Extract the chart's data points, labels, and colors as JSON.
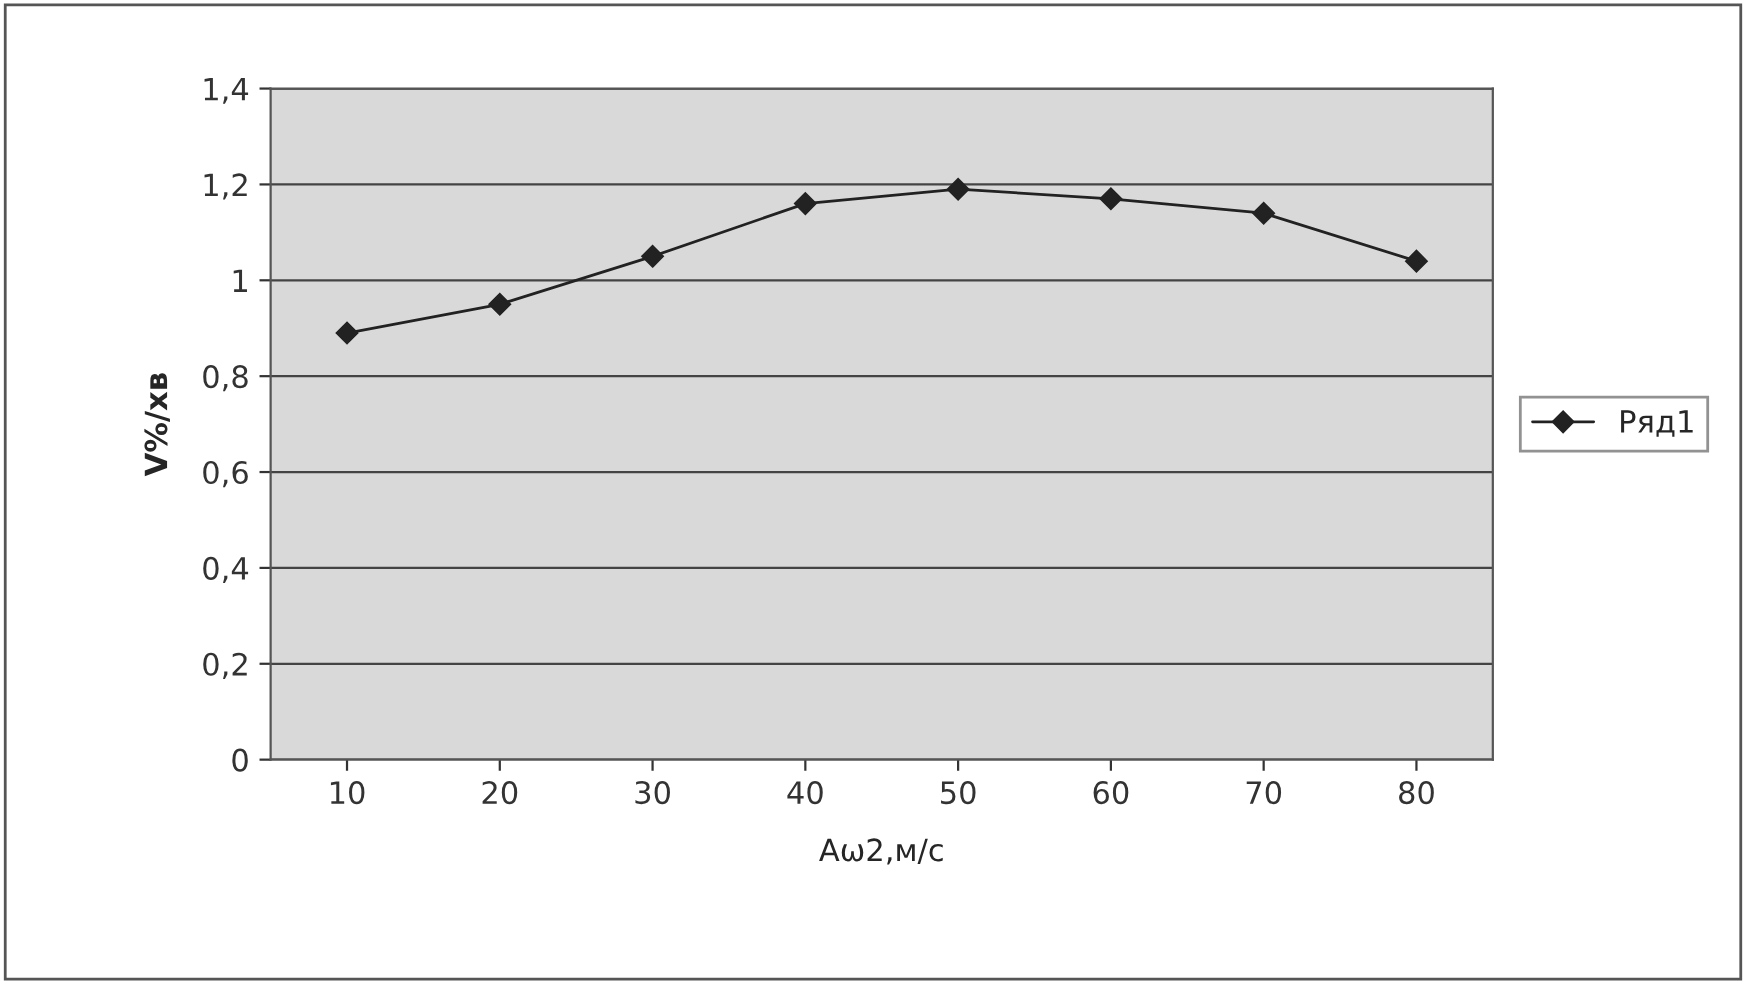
{
  "chart_data": {
    "type": "line",
    "xlabel": "Aω2,м/с",
    "ylabel": "V%/хв",
    "categories": [
      "10",
      "20",
      "30",
      "40",
      "50",
      "60",
      "70",
      "80"
    ],
    "series": [
      {
        "name": "Ряд1",
        "color": "#222222",
        "values": [
          0.89,
          0.95,
          1.05,
          1.16,
          1.19,
          1.17,
          1.14,
          1.04
        ]
      }
    ],
    "ylim": [
      0,
      1.4
    ],
    "yticks": [
      0,
      {
        "value": 0.2,
        "label": "0,2"
      },
      {
        "value": 0.4,
        "label": "0,4"
      },
      {
        "value": 0.6,
        "label": "0,6"
      },
      {
        "value": 0.8,
        "label": "0,8"
      },
      1,
      {
        "value": 1.2,
        "label": "1,2"
      },
      {
        "value": 1.4,
        "label": "1,4"
      }
    ],
    "grid": "y",
    "legend": "right",
    "marker": "diamond",
    "line_style": "solid"
  }
}
